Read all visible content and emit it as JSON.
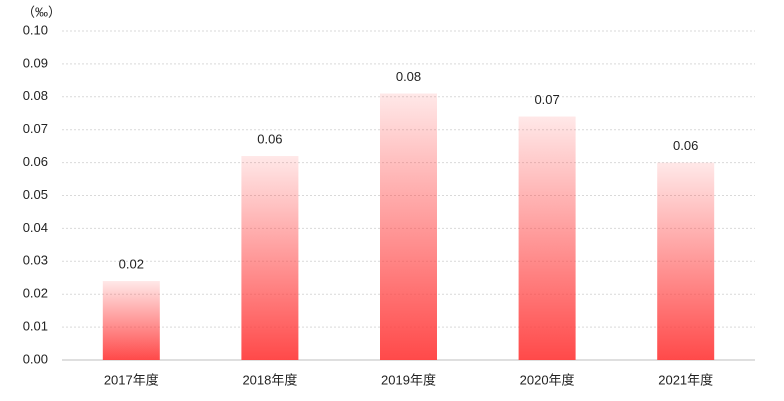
{
  "chart_data": {
    "type": "bar",
    "unit_label": "（‰）",
    "categories": [
      "2017年度",
      "2018年度",
      "2019年度",
      "2020年度",
      "2021年度"
    ],
    "values": [
      0.024,
      0.062,
      0.081,
      0.074,
      0.06
    ],
    "value_labels": [
      "0.02",
      "0.06",
      "0.08",
      "0.07",
      "0.06"
    ],
    "color": "#ff4040",
    "ylim": [
      0,
      0.1
    ],
    "yticks": [
      {
        "value": 0,
        "label": "0.00"
      },
      {
        "value": 0.01,
        "label": "0.01"
      },
      {
        "value": 0.02,
        "label": "0.02"
      },
      {
        "value": 0.03,
        "label": "0.03"
      },
      {
        "value": 0.04,
        "label": "0.04"
      },
      {
        "value": 0.05,
        "label": "0.05"
      },
      {
        "value": 0.06,
        "label": "0.06"
      },
      {
        "value": 0.07,
        "label": "0.07"
      },
      {
        "value": 0.08,
        "label": "0.08"
      },
      {
        "value": 0.09,
        "label": "0.09"
      },
      {
        "value": 0.1,
        "label": "0.10"
      }
    ],
    "grid": true
  }
}
